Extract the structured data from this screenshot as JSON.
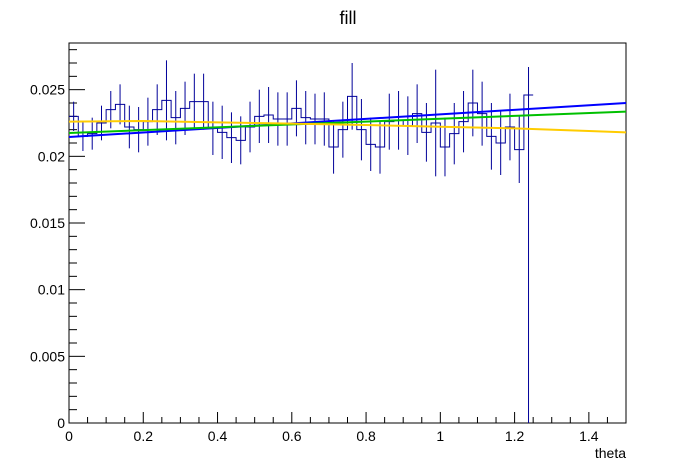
{
  "chart_data": {
    "type": "line",
    "title": "fill",
    "xlabel": "theta",
    "ylabel": "",
    "xlim": [
      0,
      1.5
    ],
    "ylim": [
      0,
      0.0285
    ],
    "grid": false,
    "x_ticks": [
      0,
      0.2,
      0.4,
      0.6,
      0.8,
      1,
      1.2,
      1.4
    ],
    "x_tick_labels": [
      "0",
      "0.2",
      "0.4",
      "0.6",
      "0.8",
      "1",
      "1.2",
      "1.4"
    ],
    "y_ticks": [
      0,
      0.005,
      0.01,
      0.015,
      0.02,
      0.025
    ],
    "y_tick_labels": [
      "0",
      "0.005",
      "0.01",
      "0.015",
      "0.02",
      "0.025"
    ],
    "histogram": {
      "color": "#000099",
      "bin_width": 0.025,
      "bin_centers": [
        0.0125,
        0.0375,
        0.0625,
        0.0875,
        0.1125,
        0.1375,
        0.1625,
        0.1875,
        0.2125,
        0.2375,
        0.2625,
        0.2875,
        0.3125,
        0.3375,
        0.3625,
        0.3875,
        0.4125,
        0.4375,
        0.4625,
        0.4875,
        0.5125,
        0.5375,
        0.5625,
        0.5875,
        0.6125,
        0.6375,
        0.6625,
        0.6875,
        0.7125,
        0.7375,
        0.7625,
        0.7875,
        0.8125,
        0.8375,
        0.8625,
        0.8875,
        0.9125,
        0.9375,
        0.9625,
        0.9875,
        1.0125,
        1.0375,
        1.0625,
        1.0875,
        1.1125,
        1.1375,
        1.1625,
        1.1875,
        1.2125,
        1.2375
      ],
      "values": [
        0.023,
        0.0215,
        0.0217,
        0.0225,
        0.0235,
        0.0239,
        0.0222,
        0.022,
        0.0226,
        0.0235,
        0.0242,
        0.0229,
        0.0236,
        0.0241,
        0.0241,
        0.0221,
        0.0218,
        0.0214,
        0.0212,
        0.0222,
        0.023,
        0.0231,
        0.0228,
        0.0228,
        0.0236,
        0.0229,
        0.0228,
        0.0228,
        0.0207,
        0.022,
        0.0245,
        0.022,
        0.0209,
        0.0207,
        0.0226,
        0.0227,
        0.0223,
        0.0232,
        0.0218,
        0.0225,
        0.0207,
        0.0217,
        0.0226,
        0.024,
        0.0232,
        0.0215,
        0.021,
        0.0222,
        0.0205,
        0.0246
      ],
      "errors": [
        0.0011,
        0.0011,
        0.0012,
        0.0013,
        0.0014,
        0.0015,
        0.0016,
        0.0017,
        0.0018,
        0.0019,
        0.003,
        0.002,
        0.002,
        0.0021,
        0.0021,
        0.002,
        0.002,
        0.0019,
        0.0018,
        0.0019,
        0.002,
        0.0021,
        0.002,
        0.002,
        0.0021,
        0.002,
        0.0019,
        0.002,
        0.002,
        0.0021,
        0.0025,
        0.0023,
        0.002,
        0.002,
        0.0021,
        0.0022,
        0.0022,
        0.0022,
        0.0022,
        0.004,
        0.0022,
        0.0023,
        0.0023,
        0.0025,
        0.0024,
        0.0025,
        0.0024,
        0.0025,
        0.0025,
        0.002
      ],
      "last_bin_error_down": 0.0246
    },
    "series": [
      {
        "color": "#0000ff",
        "x": [
          0,
          1.5
        ],
        "values": [
          0.02145,
          0.024
        ]
      },
      {
        "color": "#00c000",
        "x": [
          0,
          1.5
        ],
        "values": [
          0.02175,
          0.02335
        ]
      },
      {
        "color": "#ffcc00",
        "x": [
          0,
          0.2,
          0.4,
          0.6,
          0.8,
          1.0,
          1.2,
          1.4,
          1.5
        ],
        "values": [
          0.0226,
          0.02265,
          0.02255,
          0.02245,
          0.02235,
          0.02222,
          0.0221,
          0.0219,
          0.0218
        ]
      }
    ]
  }
}
